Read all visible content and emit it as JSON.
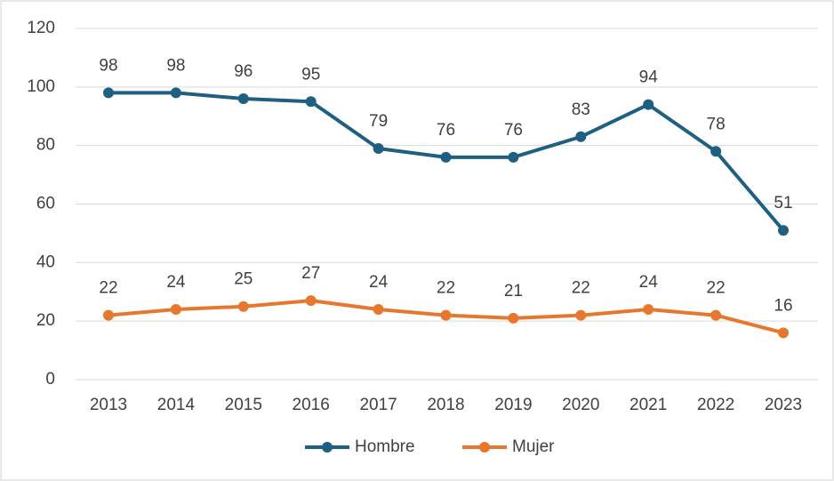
{
  "chart_data": {
    "type": "line",
    "categories": [
      "2013",
      "2014",
      "2015",
      "2016",
      "2017",
      "2018",
      "2019",
      "2020",
      "2021",
      "2022",
      "2023"
    ],
    "series": [
      {
        "name": "Hombre",
        "color": "#1f5f82",
        "values": [
          98,
          98,
          96,
          95,
          79,
          76,
          76,
          83,
          94,
          78,
          51
        ]
      },
      {
        "name": "Mujer",
        "color": "#e8772e",
        "values": [
          22,
          24,
          25,
          27,
          24,
          22,
          21,
          22,
          24,
          22,
          16
        ]
      }
    ],
    "ylim": [
      0,
      120
    ],
    "yticks": [
      0,
      20,
      40,
      60,
      80,
      100,
      120
    ],
    "grid": true,
    "legend": "bottom"
  }
}
